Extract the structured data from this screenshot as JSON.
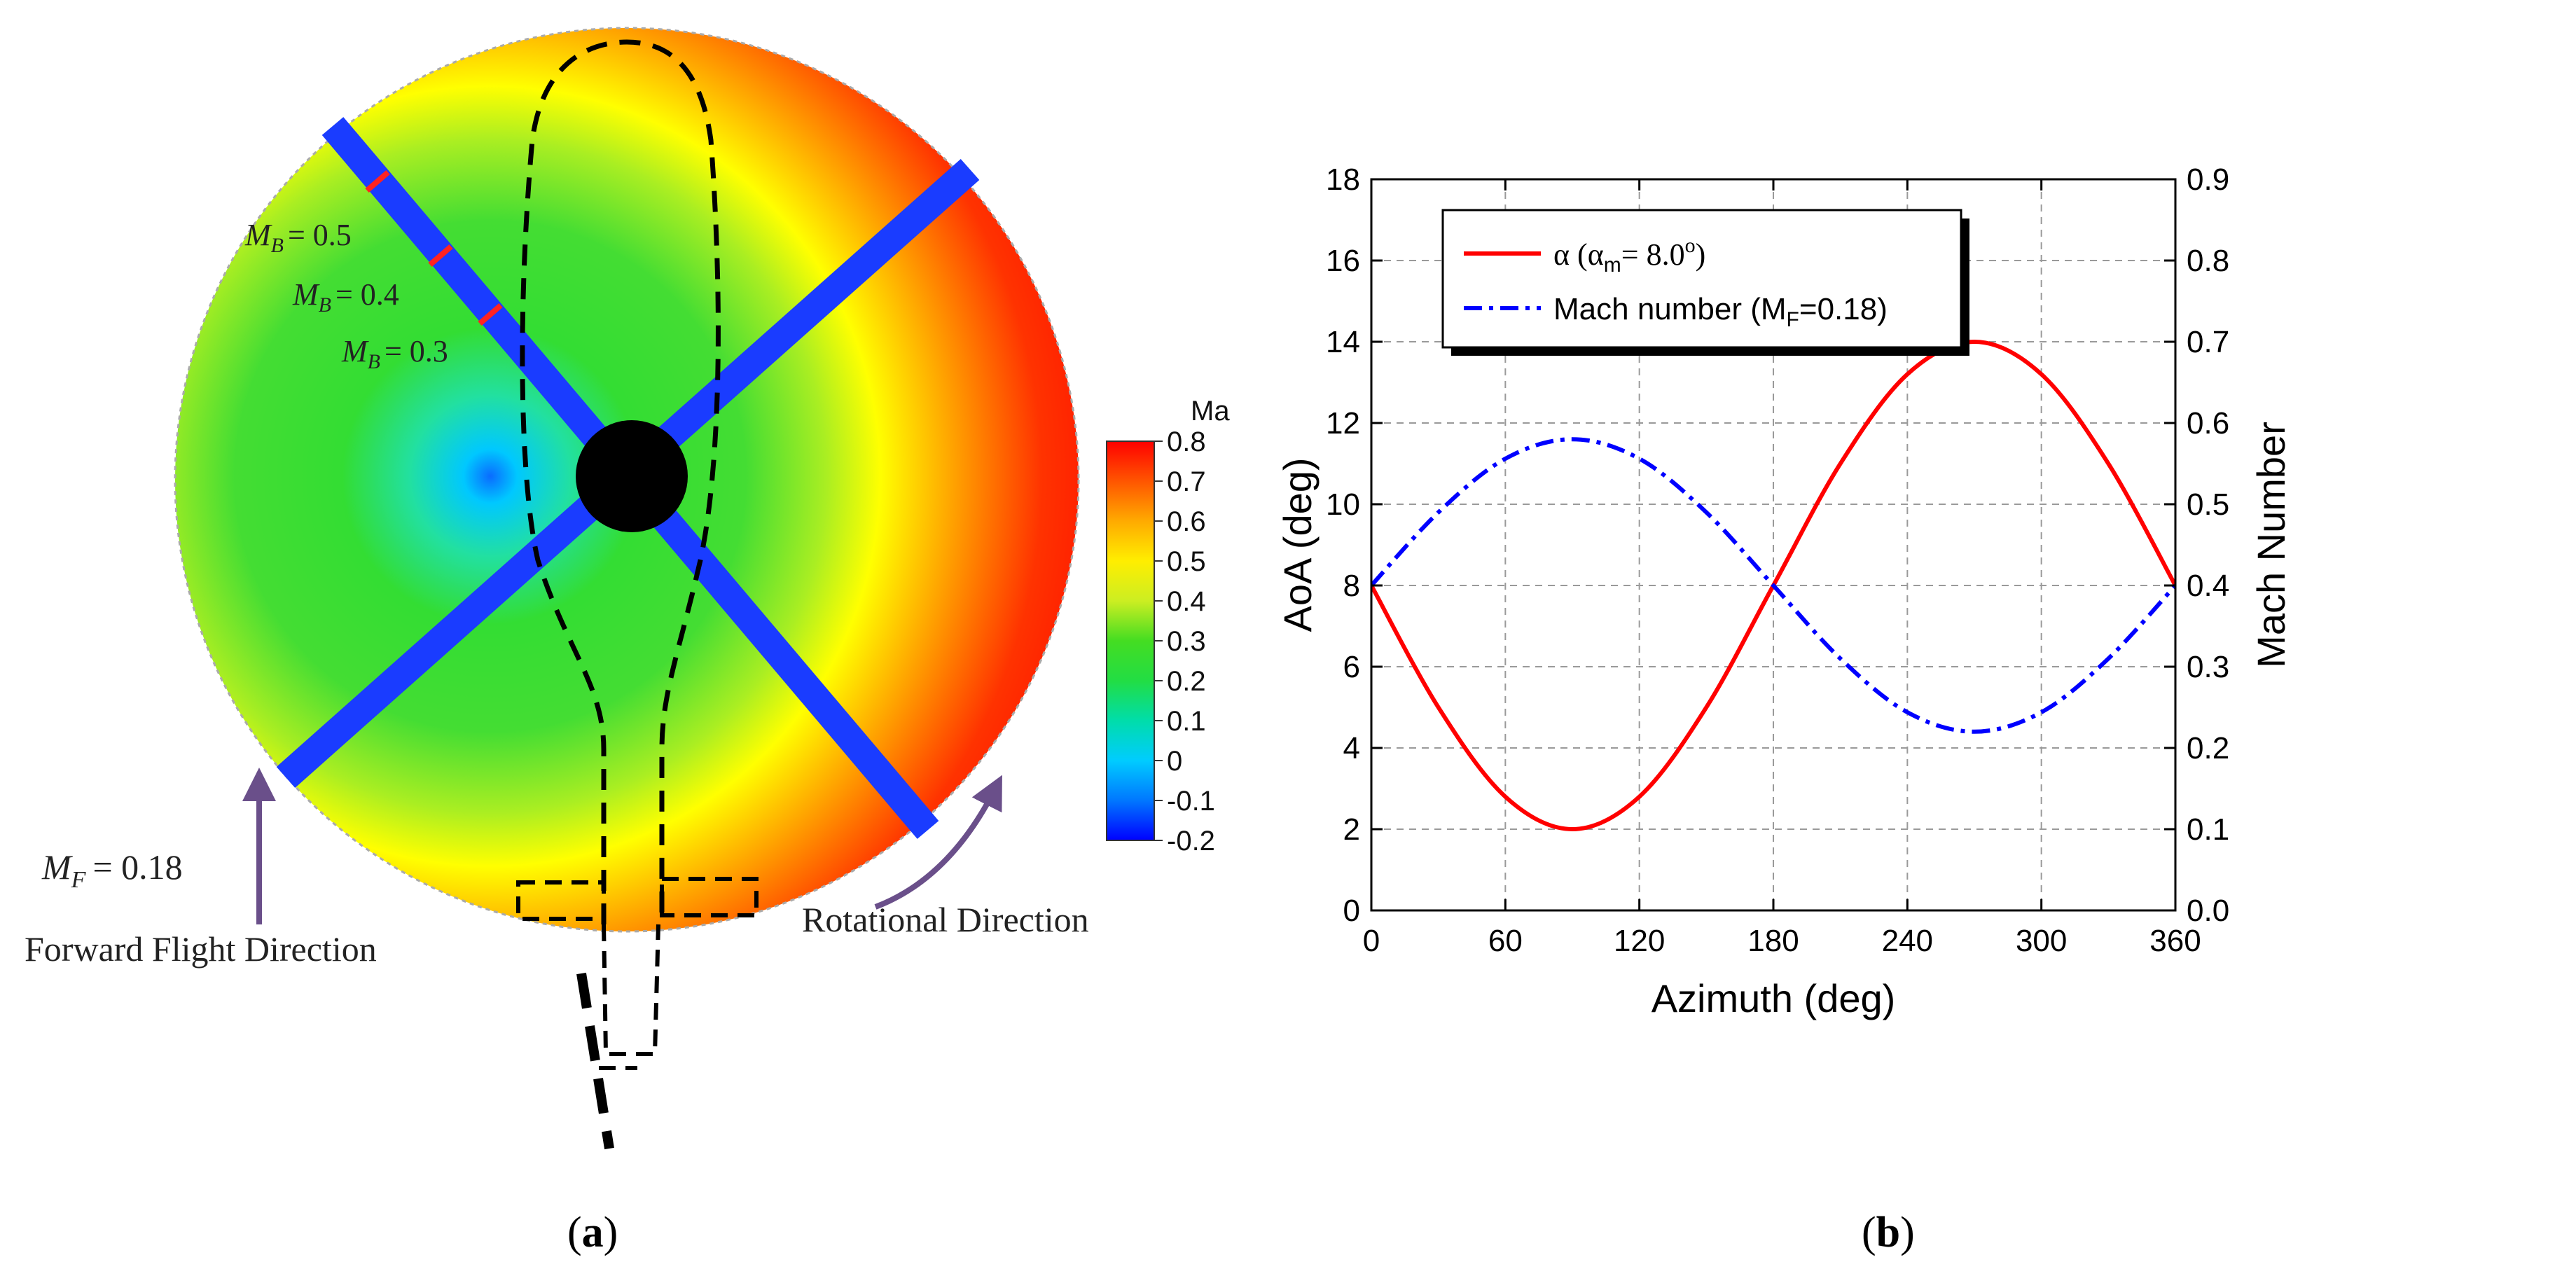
{
  "colors": {
    "alpha_series": "#ff0000",
    "mach_series": "#0000ff",
    "blade": "#1a3cff",
    "axis": "#000000",
    "grid": "#9a9a9a"
  },
  "panel_a": {
    "label": "(a)",
    "colorbar_title": "Ma",
    "colorbar_ticks": [
      "0.8",
      "0.7",
      "0.6",
      "0.5",
      "0.4",
      "0.3",
      "0.2",
      "0.1",
      "0",
      "-0.1",
      "-0.2"
    ],
    "colorbar_range": [
      -0.2,
      0.8
    ],
    "mb_labels": [
      {
        "sub": "B",
        "value": "= 0.5"
      },
      {
        "sub": "B",
        "value": "= 0.4"
      },
      {
        "sub": "B",
        "value": "= 0.3"
      }
    ],
    "mf_label": {
      "sub": "F",
      "value": "= 0.18"
    },
    "forward_flight_label": "Forward Flight Direction",
    "rotational_label": "Rotational Direction"
  },
  "panel_b": {
    "label": "(b)"
  },
  "chart_data": {
    "type": "line",
    "title": "",
    "xlabel": "Azimuth (deg)",
    "ylabel": "AoA (deg)",
    "y2label": "Mach Number",
    "xlim": [
      0,
      360
    ],
    "ylim": [
      0,
      18
    ],
    "y2lim": [
      0,
      0.9
    ],
    "xticks": [
      0,
      60,
      120,
      180,
      240,
      300,
      360
    ],
    "yticks": [
      0,
      2,
      4,
      6,
      8,
      10,
      12,
      14,
      16,
      18
    ],
    "y2ticks": [
      0.0,
      0.1,
      0.2,
      0.3,
      0.4,
      0.5,
      0.6,
      0.7,
      0.8,
      0.9
    ],
    "x": [
      0,
      30,
      60,
      90,
      120,
      150,
      180,
      210,
      240,
      270,
      300,
      330,
      360
    ],
    "grid": true,
    "legend_position": "top-left",
    "series": [
      {
        "name": "α (αm= 8.0o)",
        "legend_sym": "α (α",
        "legend_sub": "m",
        "legend_mid": "= 8.0",
        "legend_sup": "o",
        "legend_end": ")",
        "axis": "left",
        "style": "solid",
        "values": [
          8.0,
          5.0,
          2.8,
          2.0,
          2.8,
          5.0,
          8.0,
          11.0,
          13.2,
          14.0,
          13.2,
          11.0,
          8.0
        ]
      },
      {
        "name": "Mach number (MF=0.18)",
        "legend_sym": "Mach number (M",
        "legend_sub": "F",
        "legend_mid": "=0.18)",
        "legend_sup": "",
        "legend_end": "",
        "axis": "right",
        "style": "dash-dot",
        "values": [
          0.4,
          0.49,
          0.556,
          0.58,
          0.556,
          0.49,
          0.4,
          0.31,
          0.244,
          0.22,
          0.244,
          0.31,
          0.4
        ]
      }
    ]
  }
}
